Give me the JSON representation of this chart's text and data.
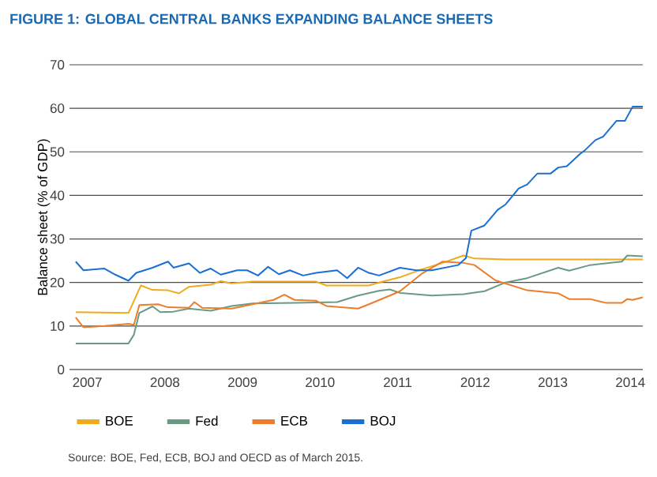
{
  "chart_data": {
    "type": "line",
    "title": "FIGURE 1: GLOBAL CENTRAL BANKS EXPANDING BALANCE SHEETS",
    "ylabel": "Balance sheet (% of GDP)",
    "xlim": [
      2006.77,
      2014.16
    ],
    "xticks": [
      2007,
      2008,
      2009,
      2010,
      2011,
      2012,
      2013,
      2014
    ],
    "ylim": [
      0,
      70
    ],
    "yticks": [
      0,
      10,
      20,
      30,
      40,
      50,
      60,
      70
    ],
    "grid": "y",
    "legend": "bottom",
    "marker": "none",
    "line_style": "solid",
    "annotations": [
      "Source: BOE, Fed, ECB, BOJ and OECD as of March 2015."
    ],
    "series": [
      {
        "name": "BOE",
        "color": "#f0aa1a",
        "x": [
          2006.85,
          2007.53,
          2007.69,
          2007.84,
          2008.04,
          2008.18,
          2008.31,
          2008.59,
          2008.72,
          2008.86,
          2009.13,
          2009.95,
          2010.08,
          2010.63,
          2010.76,
          2011.03,
          2011.31,
          2011.58,
          2011.85,
          2011.99,
          2012.39,
          2014.16
        ],
        "values": [
          13.2,
          13,
          19.3,
          18.3,
          18.2,
          17.5,
          19,
          19.5,
          20.3,
          19.8,
          20.2,
          20.2,
          19.3,
          19.3,
          20,
          21.2,
          23,
          24.5,
          26.2,
          25.5,
          25.3,
          25.3
        ]
      },
      {
        "name": "Fed",
        "color": "#6a9a84",
        "x": [
          2006.85,
          2007.53,
          2007.6,
          2007.67,
          2007.84,
          2007.94,
          2008.11,
          2008.31,
          2008.59,
          2008.86,
          2009.13,
          2009.67,
          2010.22,
          2010.49,
          2010.76,
          2010.9,
          2011.03,
          2011.44,
          2011.85,
          2012.12,
          2012.39,
          2012.67,
          2013.07,
          2013.21,
          2013.48,
          2013.89,
          2013.96,
          2014.16
        ],
        "values": [
          6,
          6,
          8,
          13,
          14.5,
          13.2,
          13.3,
          14,
          13.5,
          14.6,
          15.2,
          15.3,
          15.5,
          17,
          18.1,
          18.4,
          17.6,
          17,
          17.3,
          18,
          20,
          21,
          23.4,
          22.7,
          24,
          24.8,
          26.2,
          26
        ]
      },
      {
        "name": "ECB",
        "color": "#ec7d2a",
        "x": [
          2006.85,
          2006.95,
          2007.22,
          2007.53,
          2007.6,
          2007.67,
          2007.91,
          2008.04,
          2008.31,
          2008.38,
          2008.48,
          2008.86,
          2009.13,
          2009.4,
          2009.54,
          2009.67,
          2009.95,
          2010.08,
          2010.49,
          2010.63,
          2010.9,
          2011.03,
          2011.31,
          2011.58,
          2011.85,
          2011.99,
          2012.26,
          2012.67,
          2013.07,
          2013.21,
          2013.48,
          2013.69,
          2013.89,
          2013.96,
          2014.03,
          2014.16
        ],
        "values": [
          12,
          9.7,
          10,
          10.5,
          10.3,
          14.8,
          15,
          14.3,
          14.2,
          15.5,
          14.2,
          14,
          15,
          16,
          17.2,
          16,
          15.8,
          14.6,
          14,
          15,
          17,
          18,
          22,
          24.8,
          24.5,
          24,
          20.5,
          18.2,
          17.5,
          16.2,
          16.2,
          15.3,
          15.3,
          16.2,
          16,
          16.6
        ]
      },
      {
        "name": "BOJ",
        "color": "#1b6fd4",
        "x": [
          2006.85,
          2006.95,
          2007.22,
          2007.36,
          2007.53,
          2007.63,
          2007.84,
          2008.04,
          2008.11,
          2008.31,
          2008.45,
          2008.59,
          2008.72,
          2008.93,
          2009.06,
          2009.2,
          2009.33,
          2009.47,
          2009.61,
          2009.78,
          2009.95,
          2010.22,
          2010.35,
          2010.49,
          2010.63,
          2010.76,
          2011.03,
          2011.24,
          2011.44,
          2011.61,
          2011.78,
          2011.88,
          2011.95,
          2012.12,
          2012.29,
          2012.39,
          2012.56,
          2012.67,
          2012.8,
          2012.97,
          2013.07,
          2013.18,
          2013.35,
          2013.41,
          2013.55,
          2013.65,
          2013.82,
          2013.93,
          2014.03,
          2014.16
        ],
        "values": [
          24.8,
          22.8,
          23.2,
          21.8,
          20.4,
          22.2,
          23.4,
          24.8,
          23.4,
          24.4,
          22.2,
          23.2,
          21.8,
          22.8,
          22.8,
          21.6,
          23.6,
          21.9,
          22.8,
          21.6,
          22.2,
          22.8,
          21,
          23.4,
          22.2,
          21.6,
          23.4,
          22.8,
          22.8,
          23.4,
          24,
          25.6,
          31.9,
          33.1,
          36.7,
          37.9,
          41.6,
          42.5,
          45,
          45,
          46.4,
          46.7,
          49.5,
          50.3,
          52.7,
          53.5,
          57.1,
          57.1,
          60.4,
          60.4
        ]
      }
    ]
  }
}
